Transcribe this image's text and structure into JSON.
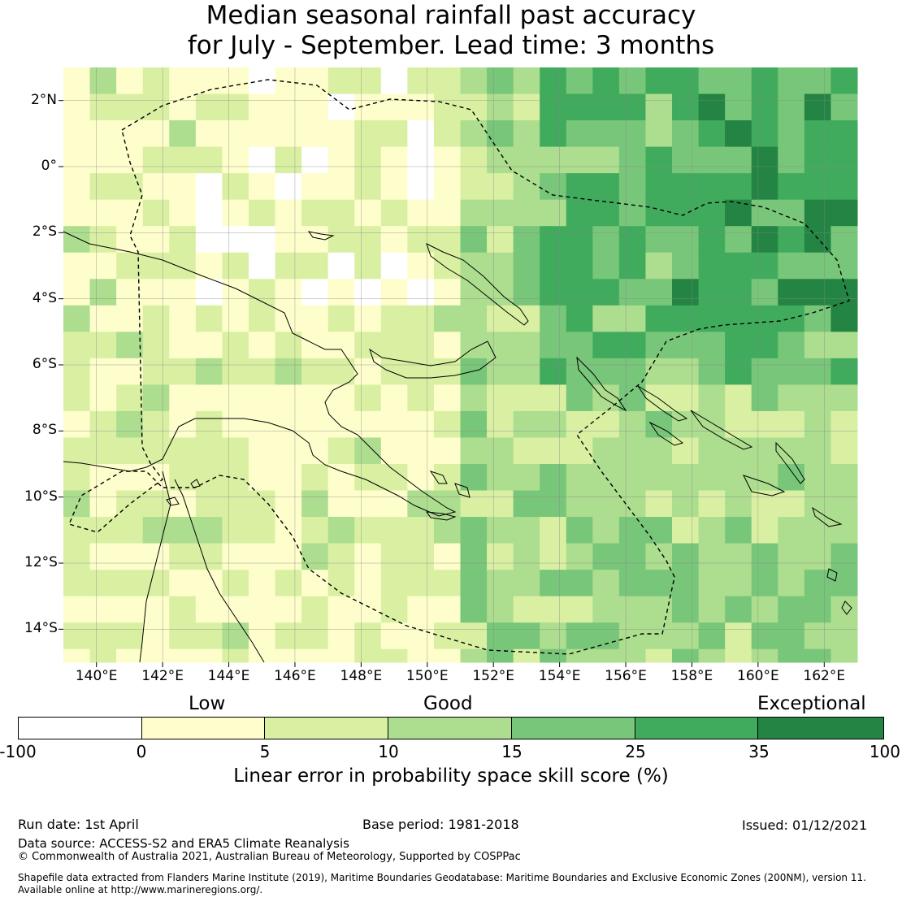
{
  "title": {
    "line1": "Median seasonal rainfall past accuracy",
    "line2": "for July - September. Lead time: 3 months"
  },
  "map": {
    "lat_labels": [
      "2°N",
      "0°",
      "2°S",
      "4°S",
      "6°S",
      "8°S",
      "10°S",
      "12°S",
      "14°S"
    ],
    "lon_labels": [
      "140°E",
      "142°E",
      "144°E",
      "146°E",
      "148°E",
      "150°E",
      "152°E",
      "154°E",
      "156°E",
      "158°E",
      "160°E",
      "162°E"
    ],
    "extent": {
      "lon_min": 139.0,
      "lon_max": 163.0,
      "lat_min": -15.0,
      "lat_max": 3.0
    },
    "grid_resolution_deg": 0.8
  },
  "colorbar": {
    "skill_labels": [
      "Low",
      "Good",
      "Exceptional"
    ],
    "tick_labels": [
      "-100",
      "0",
      "5",
      "10",
      "15",
      "25",
      "35",
      "100"
    ],
    "colors": [
      "#ffffff",
      "#fefecc",
      "#d9f0a3",
      "#addd8e",
      "#78c679",
      "#41ab5d",
      "#238443"
    ],
    "title": "Linear error in probability space skill score (%)"
  },
  "footer": {
    "run_date": "Run date: 1st April",
    "base_period": "Base period: 1981-2018",
    "issued": "Issued: 01/12/2021",
    "data_source": "Data source: ACCESS-S2 and ERA5 Climate Reanalysis",
    "copyright": "© Commonwealth of Australia 2021, Australian Bureau of Meteorology, Supported by COSPPac",
    "shapefile_line1": "Shapefile data extracted from Flanders Marine Institute (2019), Maritime Boundaries Geodatabase: Maritime Boundaries and Exclusive Economic Zones (200NM), version 11.",
    "shapefile_line2": "Available online at http://www.marineregions.org/."
  }
}
